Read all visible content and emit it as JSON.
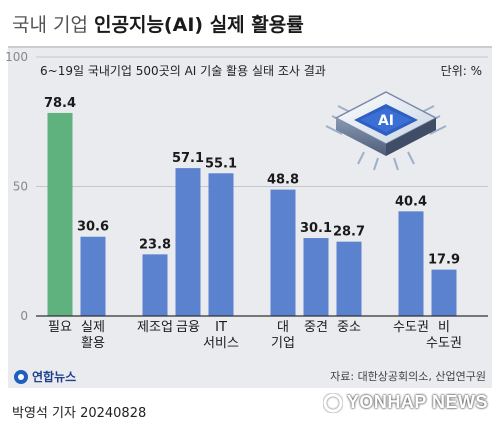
{
  "header": {
    "title_prefix": "국내 기업",
    "title_main": "인공지능(AI) 실제 활용률",
    "subtitle": "6~19일 국내기업 500곳의 AI 기술 활용 실태 조사 결과",
    "unit": "단위: %"
  },
  "chart_data": {
    "type": "bar",
    "ylim": [
      0,
      100
    ],
    "yticks": [
      0,
      50,
      100
    ],
    "grid": true,
    "legend": "none",
    "bars": [
      {
        "label": [
          "필요"
        ],
        "value": 78.4,
        "color": "#5fb27e",
        "group": 0
      },
      {
        "label": [
          "실제",
          "활용"
        ],
        "value": 30.6,
        "color": "#5b82cf",
        "group": 0
      },
      {
        "label": [
          "제조업"
        ],
        "value": 23.8,
        "color": "#5b82cf",
        "group": 1
      },
      {
        "label": [
          "금융"
        ],
        "value": 57.1,
        "color": "#5b82cf",
        "group": 1
      },
      {
        "label": [
          "IT",
          "서비스"
        ],
        "value": 55.1,
        "color": "#5b82cf",
        "group": 1
      },
      {
        "label": [
          "대",
          "기업"
        ],
        "value": 48.8,
        "color": "#5b82cf",
        "group": 2
      },
      {
        "label": [
          "중견"
        ],
        "value": 30.1,
        "color": "#5b82cf",
        "group": 2
      },
      {
        "label": [
          "중소"
        ],
        "value": 28.7,
        "color": "#5b82cf",
        "group": 2
      },
      {
        "label": [
          "수도권"
        ],
        "value": 40.4,
        "color": "#5b82cf",
        "group": 3
      },
      {
        "label": [
          "비",
          "수도권"
        ],
        "value": 17.9,
        "color": "#5b82cf",
        "group": 3
      }
    ]
  },
  "graphic": {
    "chip_text": "AI",
    "chip_icon": "ai-chip-icon"
  },
  "footer": {
    "source": "자료: 대한상공회의소, 산업연구원",
    "brand": "연합뉴스",
    "byline": "박영석 기자  20240828",
    "watermark": "YONHAP NEWS"
  }
}
